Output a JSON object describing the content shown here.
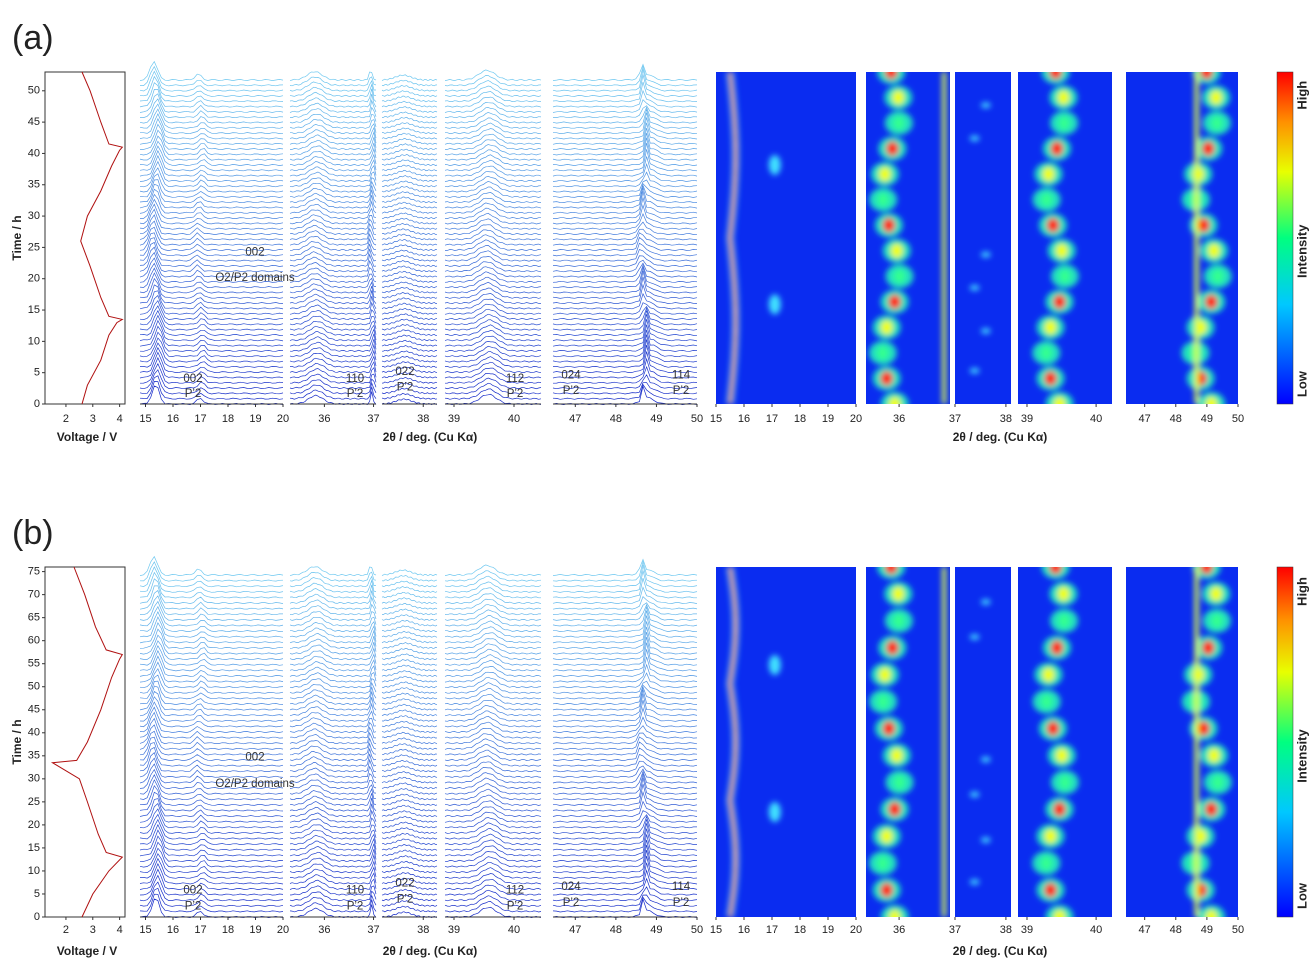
{
  "panels": [
    {
      "label": "(a)",
      "voltage": {
        "type": "line",
        "x_label": "Voltage  /  V",
        "y_label": "Time  /  h",
        "color": "#b01010",
        "xlim": [
          1.22,
          4.2
        ],
        "xticks": [
          2,
          3,
          4
        ],
        "ylim": [
          0,
          53
        ],
        "yticks": [
          0,
          5,
          10,
          15,
          20,
          25,
          30,
          35,
          40,
          45,
          50
        ],
        "x": [
          2.6,
          2.8,
          3.3,
          3.6,
          3.9,
          4.1,
          3.6,
          3.3,
          2.9,
          2.55,
          2.8,
          3.3,
          3.7,
          4.0,
          4.1,
          3.6,
          3.3,
          2.9,
          2.6
        ],
        "y": [
          0,
          3,
          7,
          11,
          13,
          13.5,
          14,
          17,
          22,
          26,
          30,
          34,
          38,
          40.5,
          41,
          41.5,
          45,
          50,
          53
        ]
      },
      "xrd_label": "2θ  /  deg. (Cu Kα)",
      "waterfall": [
        {
          "xlim": [
            14.8,
            20
          ],
          "xticks": [
            15,
            16,
            17,
            18,
            19,
            20
          ]
        },
        {
          "xlim": [
            35.3,
            37.05
          ],
          "xticks": [
            36,
            37
          ]
        },
        {
          "xlim": [
            37.1,
            38.3
          ],
          "xticks": [
            38
          ]
        },
        {
          "xlim": [
            38.85,
            40.45
          ],
          "xticks": [
            39,
            40
          ]
        },
        {
          "xlim": [
            46.45,
            50
          ],
          "xticks": [
            47,
            48,
            49,
            50
          ]
        }
      ],
      "heatmap": [
        {
          "xlim": [
            15,
            20
          ],
          "xticks": [
            15,
            16,
            17,
            18,
            19,
            20
          ]
        },
        {
          "xlim": [
            35.35,
            37
          ],
          "xticks": [
            36
          ]
        },
        {
          "xlim": [
            37,
            38.1
          ],
          "xticks": [
            37,
            38
          ]
        },
        {
          "xlim": [
            38.87,
            40.23
          ],
          "xticks": [
            39,
            40
          ]
        },
        {
          "xlim": [
            46.4,
            50
          ],
          "xticks": [
            47,
            48,
            49,
            50
          ]
        }
      ],
      "annotations": [
        {
          "lines": [
            "002",
            "O2/P2 domains"
          ]
        },
        {
          "lines": [
            "002",
            "P’2"
          ]
        },
        {
          "lines": [
            "110",
            "P’2"
          ]
        },
        {
          "lines": [
            "022",
            "P’2"
          ]
        },
        {
          "lines": [
            "112",
            "P’2"
          ]
        },
        {
          "lines": [
            "024",
            "P’2"
          ]
        },
        {
          "lines": [
            "114",
            "P’2"
          ]
        }
      ],
      "colorbar": {
        "high": "High",
        "title": "Intensity",
        "low": "Low"
      }
    },
    {
      "label": "(b)",
      "voltage": {
        "type": "line",
        "x_label": "Voltage  /  V",
        "y_label": "Time  /  h",
        "color": "#b01010",
        "xlim": [
          1.22,
          4.2
        ],
        "xticks": [
          2,
          3,
          4
        ],
        "ylim": [
          0,
          76
        ],
        "yticks": [
          0,
          5,
          10,
          15,
          20,
          25,
          30,
          35,
          40,
          45,
          50,
          55,
          60,
          65,
          70,
          75
        ],
        "x": [
          2.6,
          3.0,
          3.6,
          4.1,
          3.5,
          3.2,
          2.8,
          2.5,
          1.5,
          2.4,
          2.8,
          3.3,
          3.7,
          4.0,
          4.1,
          3.5,
          3.1,
          2.7,
          2.3
        ],
        "y": [
          0,
          5,
          10,
          13,
          14,
          18,
          25,
          30,
          33.5,
          34,
          38,
          45,
          52,
          56,
          57,
          58,
          63,
          70,
          76
        ]
      },
      "xrd_label": "2θ  /  deg. (Cu Kα)",
      "waterfall": [
        {
          "xlim": [
            14.8,
            20
          ],
          "xticks": [
            15,
            16,
            17,
            18,
            19,
            20
          ]
        },
        {
          "xlim": [
            35.3,
            37.05
          ],
          "xticks": [
            36,
            37
          ]
        },
        {
          "xlim": [
            37.1,
            38.3
          ],
          "xticks": [
            38
          ]
        },
        {
          "xlim": [
            38.85,
            40.45
          ],
          "xticks": [
            39,
            40
          ]
        },
        {
          "xlim": [
            46.45,
            50
          ],
          "xticks": [
            47,
            48,
            49,
            50
          ]
        }
      ],
      "heatmap": [
        {
          "xlim": [
            15,
            20
          ],
          "xticks": [
            15,
            16,
            17,
            18,
            19,
            20
          ]
        },
        {
          "xlim": [
            35.35,
            37
          ],
          "xticks": [
            36
          ]
        },
        {
          "xlim": [
            37,
            38.1
          ],
          "xticks": [
            37,
            38
          ]
        },
        {
          "xlim": [
            38.87,
            40.23
          ],
          "xticks": [
            39,
            40
          ]
        },
        {
          "xlim": [
            46.4,
            50
          ],
          "xticks": [
            47,
            48,
            49,
            50
          ]
        }
      ],
      "annotations": [
        {
          "lines": [
            "002",
            "O2/P2 domains"
          ]
        },
        {
          "lines": [
            "002",
            "P’2"
          ]
        },
        {
          "lines": [
            "110",
            "P’2"
          ]
        },
        {
          "lines": [
            "022",
            "P’2"
          ]
        },
        {
          "lines": [
            "112",
            "P’2"
          ]
        },
        {
          "lines": [
            "024",
            "P’2"
          ]
        },
        {
          "lines": [
            "114",
            "P’2"
          ]
        }
      ],
      "colorbar": {
        "high": "High",
        "title": "Intensity",
        "low": "Low"
      }
    }
  ]
}
